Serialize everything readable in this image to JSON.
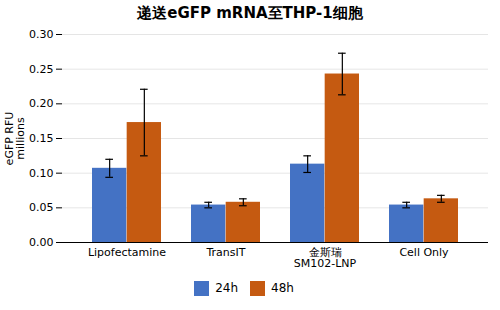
{
  "chart_data": {
    "type": "bar",
    "title": "递送eGFP mRNA至THP-1细胞",
    "categories": [
      "Lipofectamine",
      "TransIT",
      "金斯瑞\nSM102-LNP",
      "Cell Only"
    ],
    "series": [
      {
        "name": "24h",
        "color": "#4472C4",
        "values": [
          0.107,
          0.054,
          0.113,
          0.054
        ],
        "errors": [
          0.013,
          0.004,
          0.012,
          0.004
        ]
      },
      {
        "name": "48h",
        "color": "#C55A11",
        "values": [
          0.173,
          0.058,
          0.243,
          0.063
        ],
        "errors": [
          0.048,
          0.005,
          0.03,
          0.005
        ]
      }
    ],
    "ylabel": "eGFP RFU\nmillions",
    "ylim": [
      0,
      0.3
    ],
    "yticks": [
      {
        "value": 0,
        "label": "0.00"
      },
      0.05,
      {
        "value": 0.1,
        "label": "0.10"
      },
      0.15,
      {
        "value": 0.2,
        "label": "0.20"
      },
      0.25,
      {
        "value": 0.3,
        "label": "0.30"
      }
    ],
    "grid": true,
    "legend": "bottom"
  }
}
